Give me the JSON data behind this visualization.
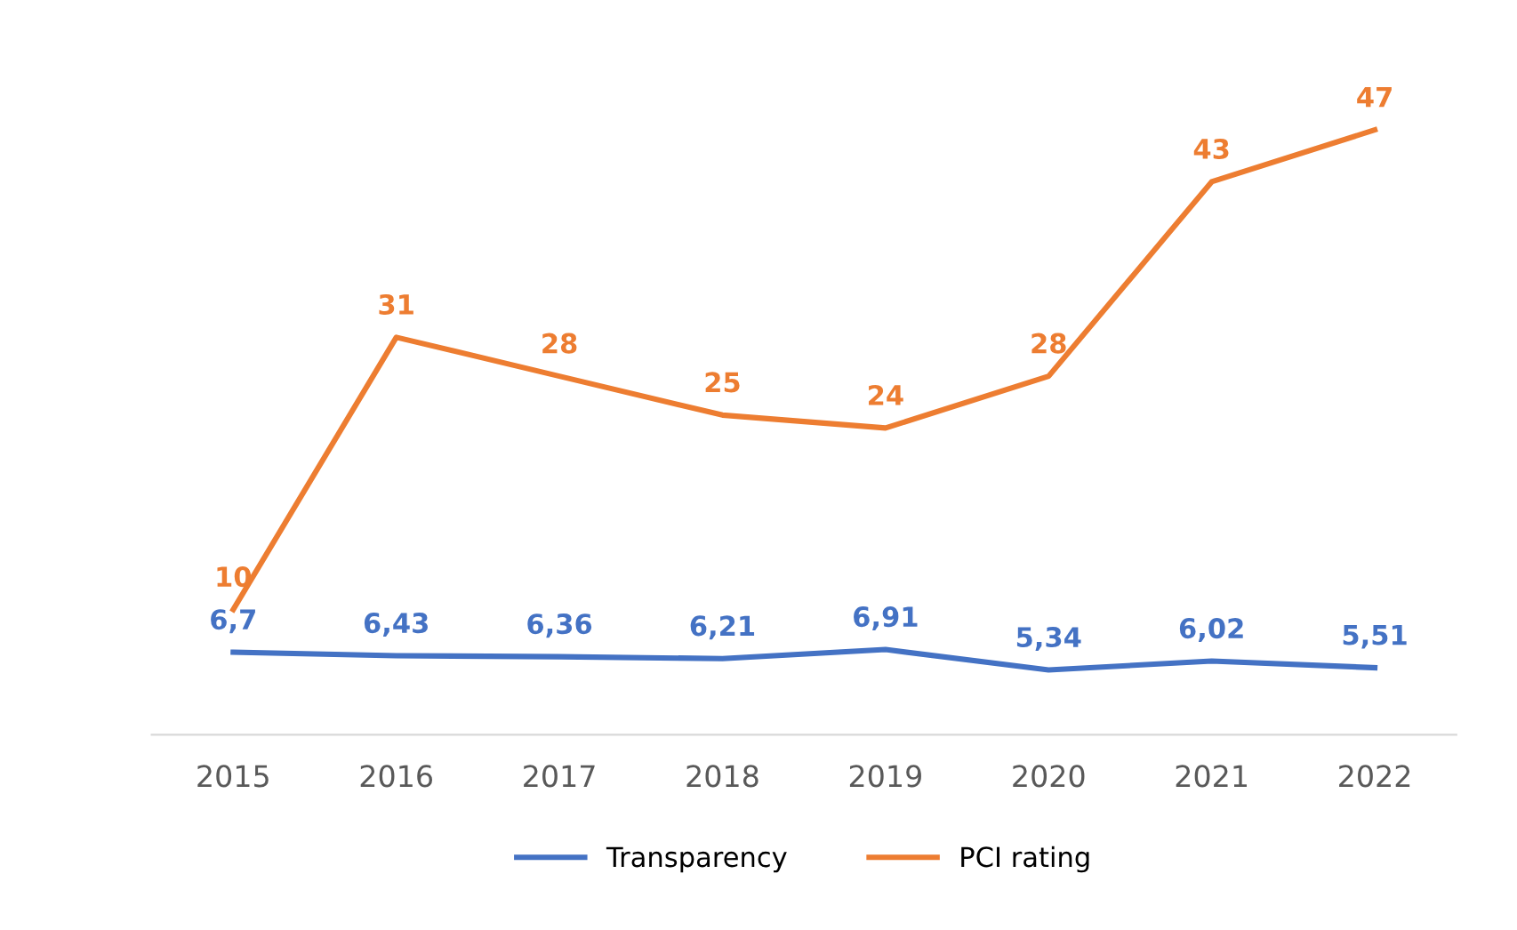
{
  "chart_data": {
    "type": "line",
    "categories": [
      "2015",
      "2016",
      "2017",
      "2018",
      "2019",
      "2020",
      "2021",
      "2022"
    ],
    "series": [
      {
        "name": "Transparency",
        "color": "#4472c4",
        "values": [
          6.7,
          6.43,
          6.36,
          6.21,
          6.91,
          5.34,
          6.02,
          5.51
        ],
        "value_labels": [
          "6,7",
          "6,43",
          "6,36",
          "6,21",
          "6,91",
          "5,34",
          "6,02",
          "5,51"
        ]
      },
      {
        "name": "PCI rating",
        "color": "#ed7d31",
        "values": [
          10,
          31,
          28,
          25,
          24,
          28,
          43,
          47
        ],
        "value_labels": [
          "10",
          "31",
          "28",
          "25",
          "24",
          "28",
          "43",
          "47"
        ]
      }
    ],
    "tick_labels": "x",
    "grid": false,
    "legend": "bottom",
    "line_style": "solid"
  }
}
